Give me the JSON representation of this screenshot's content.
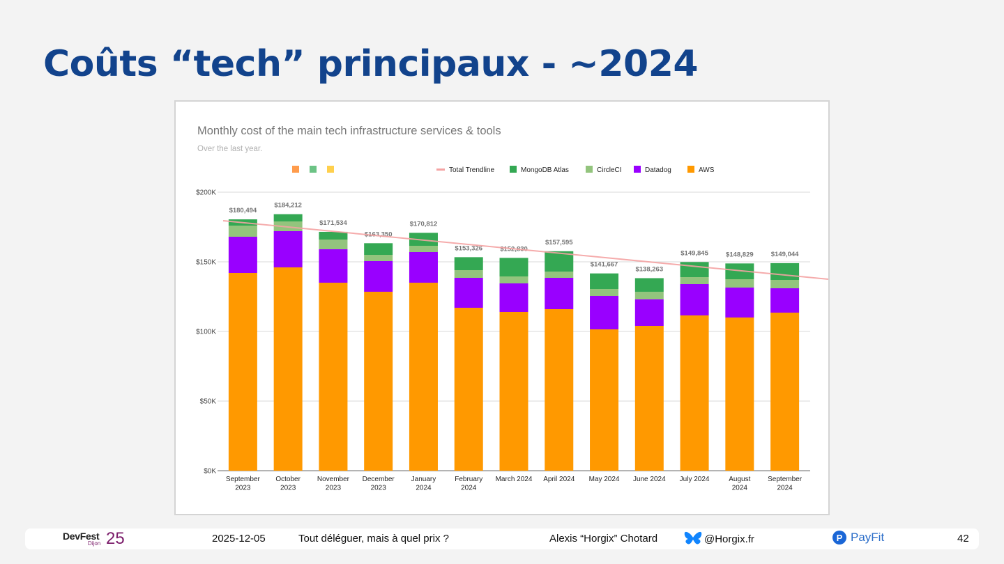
{
  "slide": {
    "title": "Coûts “tech” principaux - ~2024"
  },
  "chart_data": {
    "type": "bar",
    "stacked": true,
    "title": "Monthly cost of the main tech infrastructure services & tools",
    "subtitle": "Over the last year.",
    "xlabel": "",
    "ylabel": "",
    "ylim": [
      0,
      200000
    ],
    "yticks": [
      0,
      50000,
      100000,
      150000,
      200000
    ],
    "ytick_labels": [
      "$0K",
      "$50K",
      "$100K",
      "$150K",
      "$200K"
    ],
    "grid": true,
    "legend_position": "top",
    "categories": [
      "September 2023",
      "October 2023",
      "November 2023",
      "December 2023",
      "January 2024",
      "February 2024",
      "March 2024",
      "April 2024",
      "May 2024",
      "June 2024",
      "July 2024",
      "August 2024",
      "September 2024"
    ],
    "category_lines": [
      [
        "September",
        "2023"
      ],
      [
        "October",
        "2023"
      ],
      [
        "November",
        "2023"
      ],
      [
        "December",
        "2023"
      ],
      [
        "January",
        "2024"
      ],
      [
        "February",
        "2024"
      ],
      [
        "March 2024"
      ],
      [
        "April 2024"
      ],
      [
        "May 2024"
      ],
      [
        "June 2024"
      ],
      [
        "July 2024"
      ],
      [
        "August",
        "2024"
      ],
      [
        "September",
        "2024"
      ]
    ],
    "series": [
      {
        "name": "AWS",
        "color": "#ff9900",
        "values": [
          142000,
          146000,
          135000,
          128500,
          135000,
          117000,
          114000,
          116000,
          101500,
          104000,
          111500,
          110000,
          113500
        ]
      },
      {
        "name": "Datadog",
        "color": "#9900ff",
        "values": [
          26000,
          26000,
          24000,
          22000,
          22000,
          21500,
          20500,
          22500,
          24000,
          19000,
          22500,
          21500,
          17500
        ]
      },
      {
        "name": "CircleCI",
        "color": "#93c47d",
        "values": [
          8000,
          7000,
          7000,
          4500,
          4500,
          5500,
          5000,
          4500,
          5000,
          5500,
          5000,
          6000,
          6000
        ]
      },
      {
        "name": "MongoDB Atlas",
        "color": "#34a853",
        "values": [
          4494,
          5212,
          5534,
          8350,
          9312,
          9326,
          13330,
          14595,
          11167,
          9763,
          10845,
          11329,
          12044
        ]
      }
    ],
    "totals": [
      180494,
      184212,
      171534,
      163350,
      170812,
      153326,
      152830,
      157595,
      141667,
      138263,
      149845,
      148829,
      149044
    ],
    "total_labels": [
      "$180,494",
      "$184,212",
      "$171,534",
      "$163,350",
      "$170,812",
      "$153,326",
      "$152,830",
      "$157,595",
      "$141,667",
      "$138,263",
      "$149,845",
      "$148,829",
      "$149,044"
    ],
    "trendline": {
      "name": "Total Trendline",
      "color": "#f4a3a3",
      "start": 179500,
      "end": 137500
    },
    "legend": [
      {
        "name": "Total Trendline",
        "color": "#f4a3a3",
        "kind": "line"
      },
      {
        "name": "MongoDB Atlas",
        "color": "#34a853",
        "kind": "box"
      },
      {
        "name": "CircleCI",
        "color": "#93c47d",
        "kind": "box"
      },
      {
        "name": "Datadog",
        "color": "#9900ff",
        "kind": "box"
      },
      {
        "name": "AWS",
        "color": "#ff9900",
        "kind": "box"
      }
    ],
    "orphan_legend_swatches": [
      "#ff9c4c",
      "#6cc385",
      "#ffd04d"
    ]
  },
  "footer": {
    "event_name": "DevFest",
    "event_city": "Dijon",
    "event_year": "25",
    "date": "2025-12-05",
    "talk_title": "Tout déléguer, mais à quel prix ?",
    "author": "Alexis “Horgix” Chotard",
    "handle": "@Horgix.fr",
    "company": "PayFit",
    "company_badge": "P",
    "page_number": "42"
  }
}
